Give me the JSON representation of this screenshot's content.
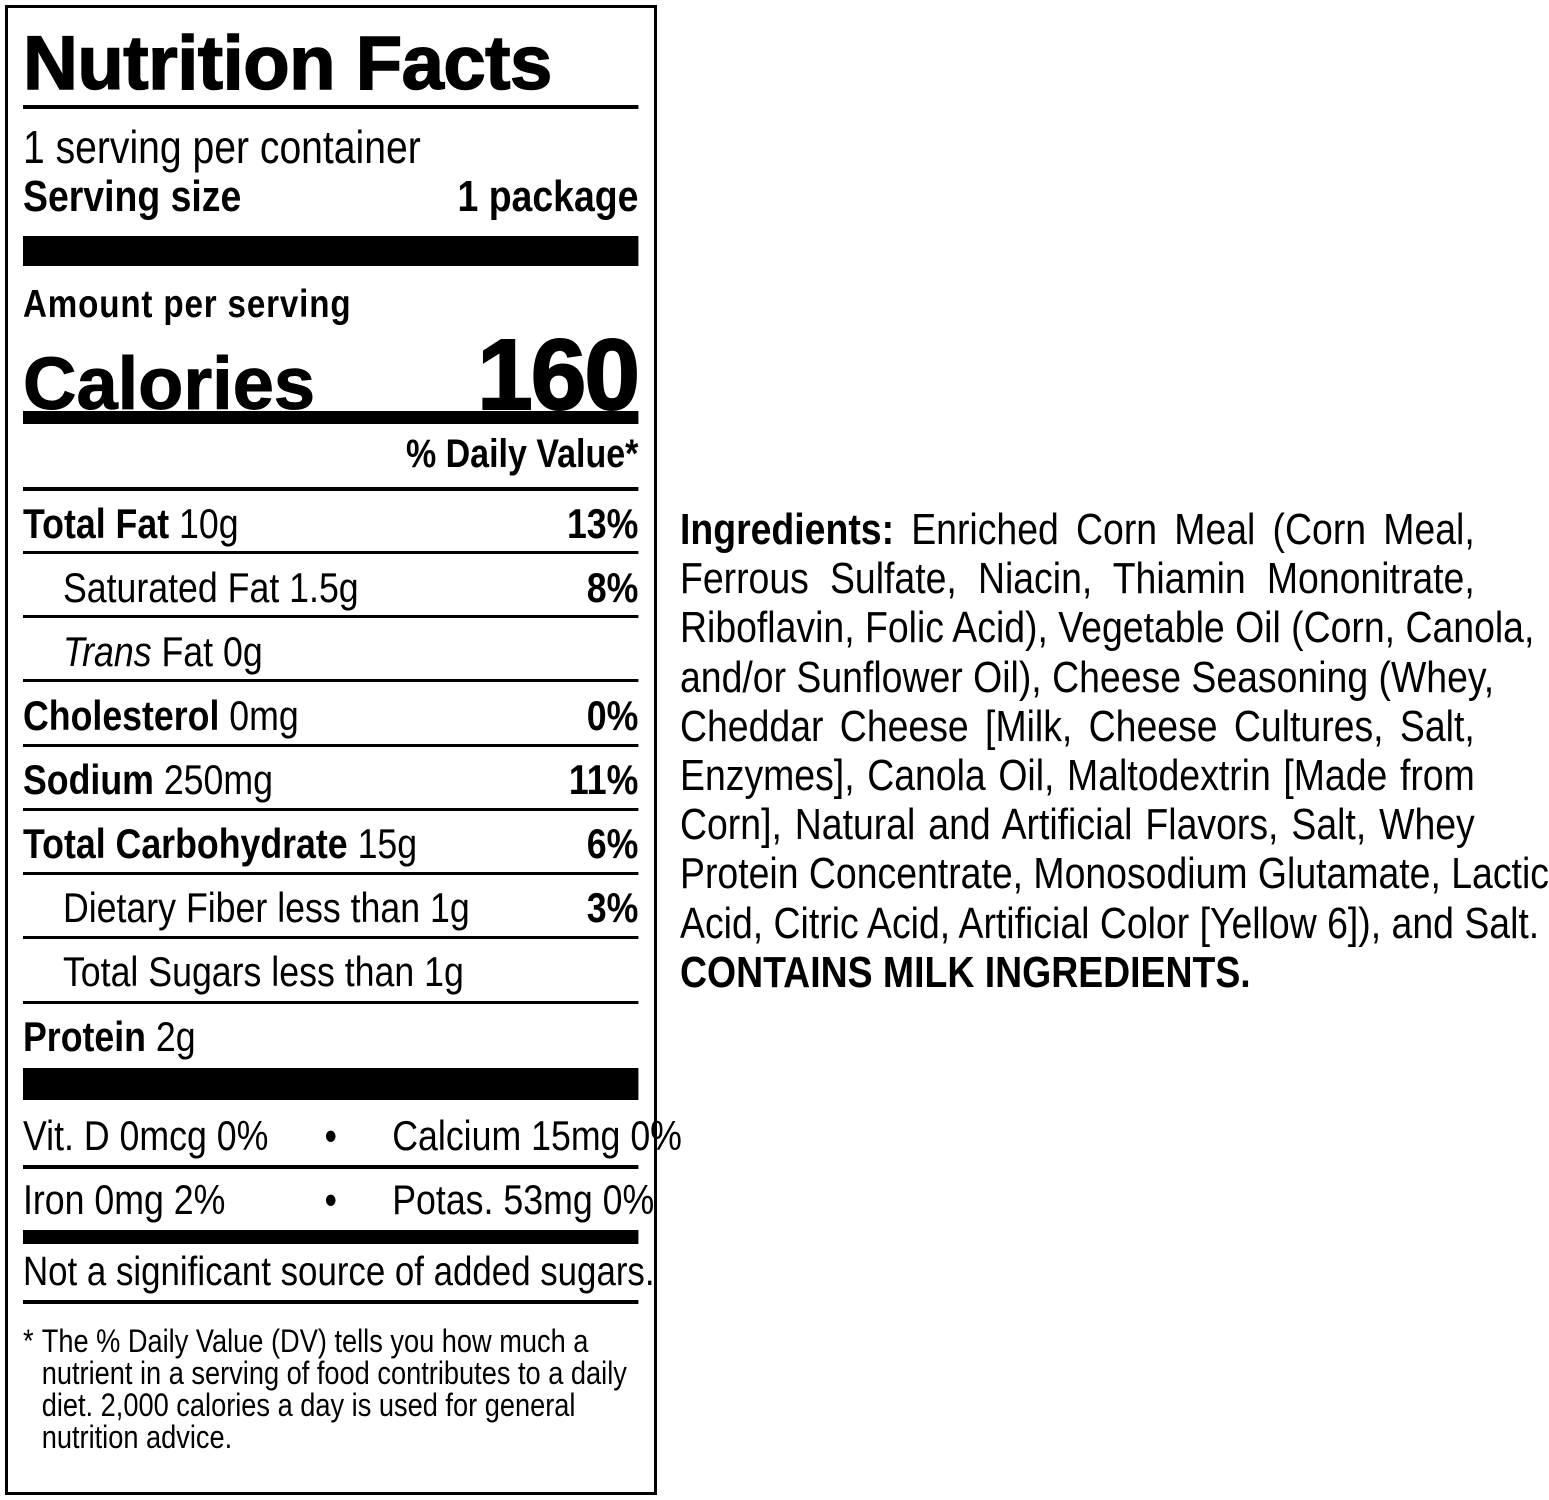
{
  "label": {
    "title": "Nutrition Facts",
    "servings": "1 serving per container",
    "serving_size_label": "Serving size",
    "serving_size_value": "1 package",
    "amount_per_serving": "Amount per serving",
    "calories_label": "Calories",
    "calories_value": "160",
    "daily_value_header": "% Daily Value*",
    "nutrients": [
      {
        "name": "Total Fat",
        "amount": "10g",
        "dv": "13%"
      },
      {
        "name": "Saturated Fat 1.5g",
        "dv": "8%"
      },
      {
        "name_italic": "Trans",
        "name": "Fat 0g",
        "dv": ""
      },
      {
        "name": "Cholesterol",
        "amount": "0mg",
        "dv": "0%"
      },
      {
        "name": "Sodium",
        "amount": "250mg",
        "dv": "11%"
      },
      {
        "name": "Total Carbohydrate",
        "amount": "15g",
        "dv": "6%"
      },
      {
        "name": "Dietary Fiber less than 1g",
        "dv": "3%"
      },
      {
        "name": "Total Sugars less than 1g",
        "dv": ""
      },
      {
        "name": "Protein",
        "amount": "2g"
      }
    ],
    "vitamins": [
      {
        "left": "Vit. D 0mcg 0%",
        "sep": "•",
        "right": "Calcium 15mg 0%"
      },
      {
        "left": "Iron 0mg 2%",
        "sep": "•",
        "right": "Potas. 53mg 0%"
      }
    ],
    "added_sugars_note": "Not a significant source of added sugars.",
    "footnote_star": "*",
    "footnote": "The % Daily Value (DV) tells you how much a nutrient in a serving of food contributes to a daily diet. 2,000 calories a day is used for general nutrition advice."
  },
  "ingredients": {
    "label": "Ingredients:",
    "lines": [
      "Enriched Corn Meal (Corn Meal,",
      "Ferrous Sulfate, Niacin, Thiamin Mononitrate,",
      "Riboflavin, Folic Acid), Vegetable Oil (Corn, Canola,",
      "and/or Sunflower Oil), Cheese Seasoning (Whey,",
      "Cheddar Cheese [Milk, Cheese Cultures, Salt,",
      "Enzymes], Canola Oil, Maltodextrin [Made from",
      "Corn], Natural and Artificial Flavors, Salt, Whey",
      "Protein Concentrate, Monosodium Glutamate, Lactic",
      "Acid, Citric Acid, Artificial Color [Yellow 6]), and Salt."
    ],
    "allergen": "CONTAINS MILK INGREDIENTS."
  }
}
